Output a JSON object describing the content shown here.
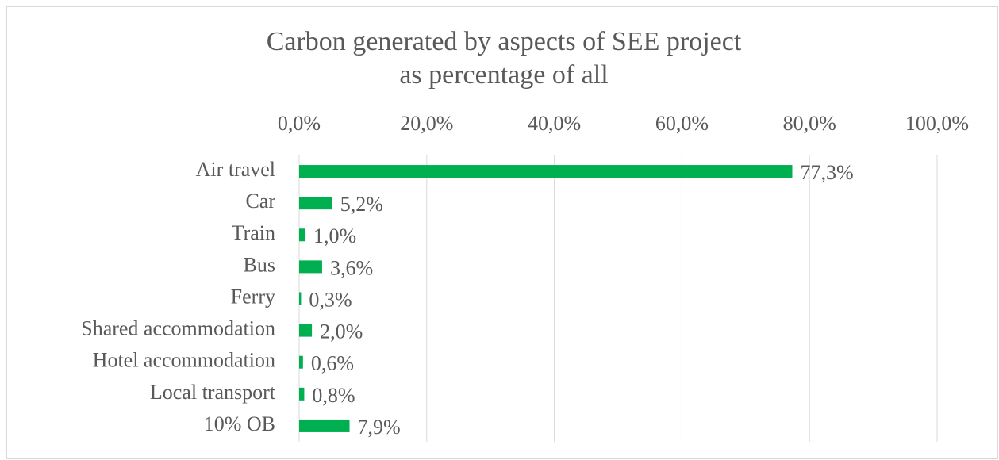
{
  "chart_data": {
    "type": "bar",
    "orientation": "horizontal",
    "title": [
      "Carbon generated by aspects of SEE project",
      "as percentage of all"
    ],
    "categories": [
      "Air travel",
      "Car",
      "Train",
      "Bus",
      "Ferry",
      "Shared accommodation",
      "Hotel accommodation",
      "Local transport",
      "10% OB"
    ],
    "values": [
      77.3,
      5.2,
      1.0,
      3.6,
      0.3,
      2.0,
      0.6,
      0.8,
      7.9
    ],
    "value_labels": [
      "77,3%",
      "5,2%",
      "1,0%",
      "3,6%",
      "0,3%",
      "2,0%",
      "0,6%",
      "0,8%",
      "7,9%"
    ],
    "color": "#00b050",
    "xlim": [
      0,
      100
    ],
    "xticks": [
      {
        "value": 0,
        "label": "0,0%"
      },
      {
        "value": 20,
        "label": "20,0%"
      },
      {
        "value": 40,
        "label": "40,0%"
      },
      {
        "value": 60,
        "label": "60,0%"
      },
      {
        "value": 80,
        "label": "80,0%"
      },
      {
        "value": 100,
        "label": "100,0%"
      }
    ],
    "grid": true
  }
}
